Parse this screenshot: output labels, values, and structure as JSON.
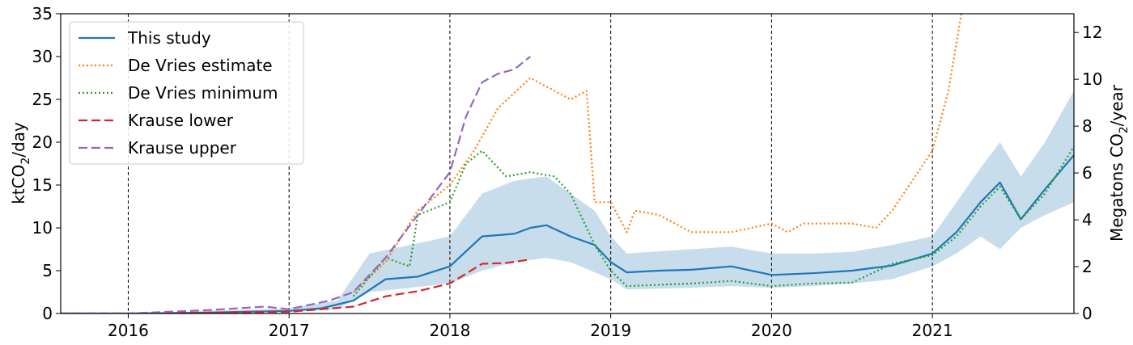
{
  "chart_data": {
    "type": "line",
    "title": "",
    "xlim": [
      2015.58,
      2021.88
    ],
    "ylim_left": [
      0,
      35
    ],
    "ylim_right": [
      0,
      12.8
    ],
    "ylabel_left_main": "ktCO",
    "ylabel_left_sub": "2",
    "ylabel_left_tail": "/day",
    "ylabel_right_main": "Megatons CO",
    "ylabel_right_sub": "2",
    "ylabel_right_tail": "/year",
    "x_ticks": [
      {
        "value": 2016,
        "label": "2016"
      },
      {
        "value": 2017,
        "label": "2017"
      },
      {
        "value": 2018,
        "label": "2018"
      },
      {
        "value": 2019,
        "label": "2019"
      },
      {
        "value": 2020,
        "label": "2020"
      },
      {
        "value": 2021,
        "label": "2021"
      }
    ],
    "y_ticks_left": [
      {
        "value": 0,
        "label": "0"
      },
      {
        "value": 5,
        "label": "5"
      },
      {
        "value": 10,
        "label": "10"
      },
      {
        "value": 15,
        "label": "15"
      },
      {
        "value": 20,
        "label": "20"
      },
      {
        "value": 25,
        "label": "25"
      },
      {
        "value": 30,
        "label": "30"
      },
      {
        "value": 35,
        "label": "35"
      }
    ],
    "y_ticks_right": [
      {
        "value": 0,
        "label": "0"
      },
      {
        "value": 2,
        "label": "2"
      },
      {
        "value": 4,
        "label": "4"
      },
      {
        "value": 6,
        "label": "6"
      },
      {
        "value": 8,
        "label": "8"
      },
      {
        "value": 10,
        "label": "10"
      },
      {
        "value": 12,
        "label": "12"
      }
    ],
    "vlines": [
      2016,
      2017,
      2018,
      2019,
      2020,
      2021
    ],
    "grid": false,
    "legend_position": "top-left",
    "band": {
      "x": [
        2015.58,
        2016.0,
        2016.5,
        2017.0,
        2017.3,
        2017.5,
        2017.75,
        2018.0,
        2018.2,
        2018.4,
        2018.6,
        2018.75,
        2018.9,
        2019.0,
        2019.1,
        2019.5,
        2019.75,
        2020.0,
        2020.25,
        2020.5,
        2020.75,
        2021.0,
        2021.15,
        2021.3,
        2021.42,
        2021.55,
        2021.7,
        2021.88
      ],
      "lower": [
        0,
        0,
        0.1,
        0.2,
        0.5,
        2.5,
        3.0,
        3.5,
        5.0,
        6.0,
        6.5,
        6.0,
        4.8,
        4.0,
        2.8,
        3.0,
        3.2,
        3.0,
        3.2,
        3.5,
        4.0,
        5.5,
        7.0,
        9.0,
        7.5,
        10.0,
        11.5,
        13.0
      ],
      "upper": [
        0,
        0,
        0.3,
        0.6,
        1.5,
        7.0,
        8.0,
        9.0,
        14.0,
        15.5,
        16.0,
        14.0,
        12.0,
        9.0,
        7.0,
        7.5,
        7.8,
        7.0,
        7.0,
        7.2,
        8.0,
        9.0,
        13.0,
        17.0,
        20.0,
        16.0,
        20.0,
        26.0
      ]
    },
    "series": [
      {
        "name": "This study",
        "color": "#1f77b4",
        "dash": "solid",
        "x": [
          2015.58,
          2016.0,
          2016.5,
          2017.0,
          2017.2,
          2017.4,
          2017.6,
          2017.8,
          2018.0,
          2018.2,
          2018.4,
          2018.5,
          2018.6,
          2018.75,
          2018.9,
          2019.0,
          2019.1,
          2019.3,
          2019.5,
          2019.75,
          2020.0,
          2020.25,
          2020.5,
          2020.75,
          2021.0,
          2021.15,
          2021.3,
          2021.42,
          2021.55,
          2021.7,
          2021.88
        ],
        "y": [
          0,
          0,
          0.1,
          0.3,
          0.6,
          1.5,
          4.0,
          4.3,
          5.5,
          9.0,
          9.3,
          10.0,
          10.3,
          9.0,
          8.0,
          6.0,
          4.8,
          5.0,
          5.1,
          5.5,
          4.5,
          4.7,
          5.0,
          5.6,
          7.0,
          9.5,
          13.0,
          15.3,
          11.0,
          14.5,
          18.5
        ]
      },
      {
        "name": "De Vries estimate",
        "color": "#ff7f0e",
        "dash": "dotted",
        "x": [
          2017.4,
          2017.6,
          2017.8,
          2018.0,
          2018.15,
          2018.3,
          2018.5,
          2018.75,
          2018.85,
          2018.9,
          2019.0,
          2019.1,
          2019.15,
          2019.3,
          2019.5,
          2019.75,
          2020.0,
          2020.1,
          2020.2,
          2020.5,
          2020.65,
          2020.75,
          2021.0,
          2021.1,
          2021.18
        ],
        "y": [
          2.5,
          6.0,
          12.0,
          15.0,
          19.0,
          24.0,
          27.5,
          25.0,
          26.0,
          13.0,
          13.0,
          9.5,
          12.0,
          11.5,
          9.5,
          9.5,
          10.5,
          9.5,
          10.5,
          10.5,
          10.0,
          12.0,
          19.0,
          26.0,
          35.0
        ]
      },
      {
        "name": "De Vries minimum",
        "color": "#2ca02c",
        "dash": "dotted",
        "x": [
          2017.4,
          2017.6,
          2017.75,
          2017.8,
          2018.0,
          2018.1,
          2018.2,
          2018.35,
          2018.5,
          2018.65,
          2018.75,
          2018.9,
          2019.0,
          2019.1,
          2019.5,
          2019.75,
          2020.0,
          2020.25,
          2020.5,
          2020.75,
          2021.0,
          2021.15,
          2021.3,
          2021.42,
          2021.55,
          2021.7,
          2021.88
        ],
        "y": [
          2.0,
          6.5,
          5.5,
          11.5,
          13.0,
          17.5,
          19.0,
          16.0,
          16.5,
          16.0,
          14.0,
          8.0,
          5.0,
          3.2,
          3.5,
          3.8,
          3.2,
          3.5,
          3.6,
          5.8,
          6.8,
          9.0,
          12.5,
          14.8,
          11.0,
          14.0,
          19.5
        ]
      },
      {
        "name": "Krause lower",
        "color": "#d62728",
        "dash": "dashed",
        "x": [
          2015.58,
          2016.0,
          2016.5,
          2017.0,
          2017.4,
          2017.6,
          2017.8,
          2018.0,
          2018.2,
          2018.35,
          2018.5
        ],
        "y": [
          0,
          0,
          0.1,
          0.2,
          0.8,
          2.0,
          2.6,
          3.5,
          5.8,
          5.9,
          6.3
        ]
      },
      {
        "name": "Krause upper",
        "color": "#9467bd",
        "dash": "dashed",
        "x": [
          2015.58,
          2016.0,
          2016.5,
          2016.85,
          2017.0,
          2017.25,
          2017.4,
          2017.6,
          2017.8,
          2018.0,
          2018.1,
          2018.2,
          2018.3,
          2018.4,
          2018.5
        ],
        "y": [
          0,
          0,
          0.4,
          0.8,
          0.5,
          1.5,
          2.5,
          6.5,
          11.5,
          16.5,
          23.0,
          27.0,
          28.0,
          28.5,
          30.0
        ]
      }
    ]
  }
}
